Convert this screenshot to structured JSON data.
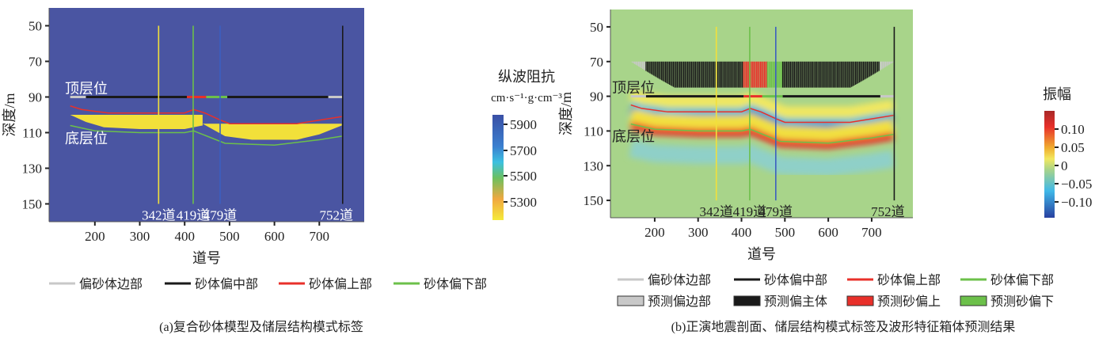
{
  "colors": {
    "yellow": "#f2e03a",
    "green": "#6cc04a",
    "blue": "#3b5fc0",
    "black": "#1a1a1a",
    "grey": "#c8c8c8",
    "red": "#e8302a",
    "bg_left": "#4a55a2",
    "bg_right": "#a8d48a"
  },
  "legend_a": [
    "偏砂体边部",
    "砂体偏中部",
    "砂体偏上部",
    "砂体偏下部"
  ],
  "legend_b_lines": [
    "偏砂体边部",
    "砂体偏中部",
    "砂体偏上部",
    "砂体偏下部"
  ],
  "legend_b_boxes": [
    "预测偏边部",
    "预测偏主体",
    "预测砂偏上",
    "预测砂偏下"
  ],
  "caption_a": "(a)复合砂体模型及储层结构模式标签",
  "caption_b": "(b)正演地震剖面、储层结构模式标签及波形特征箱体预测结果",
  "chart_data": [
    {
      "type": "heatmap",
      "title": "复合砂体模型",
      "xlabel": "道号",
      "ylabel": "深度/m",
      "xticks": [
        200,
        300,
        400,
        500,
        600,
        700
      ],
      "yticks": [
        50,
        70,
        90,
        110,
        130,
        150
      ],
      "xlim": [
        98,
        800
      ],
      "ylim": [
        160,
        40
      ],
      "horizon_labels": [
        "顶层位",
        "底层位"
      ],
      "colorbar": {
        "title": "纵波阻抗",
        "unit": "cm·s⁻¹·g·cm⁻³",
        "ticks": [
          "5900",
          "5700",
          "5500",
          "5300"
        ],
        "range": [
          5200,
          5960
        ]
      },
      "traces": [
        {
          "trace": 342,
          "label": "342道",
          "color": "#f2e03a"
        },
        {
          "trace": 419,
          "label": "419道",
          "color": "#6cc04a"
        },
        {
          "trace": 479,
          "label": "479道",
          "color": "#3b5fc0"
        },
        {
          "trace": 752,
          "label": "752道",
          "color": "#1a1a1a"
        }
      ],
      "label_depth": 90,
      "label_segments": [
        [
          145,
          180,
          "edge"
        ],
        [
          180,
          405,
          "middle"
        ],
        [
          405,
          448,
          "upper"
        ],
        [
          448,
          495,
          "lower"
        ],
        [
          495,
          720,
          "middle"
        ],
        [
          720,
          752,
          "edge"
        ]
      ],
      "top_horizon": [
        [
          145,
          95
        ],
        [
          170,
          97
        ],
        [
          230,
          99
        ],
        [
          400,
          99
        ],
        [
          420,
          97
        ],
        [
          445,
          99
        ],
        [
          480,
          103
        ],
        [
          500,
          105
        ],
        [
          650,
          105
        ],
        [
          700,
          103
        ],
        [
          750,
          101
        ]
      ],
      "bottom_horizon": [
        [
          145,
          106
        ],
        [
          200,
          109
        ],
        [
          300,
          110
        ],
        [
          400,
          110
        ],
        [
          420,
          109
        ],
        [
          450,
          112
        ],
        [
          490,
          116
        ],
        [
          600,
          117
        ],
        [
          700,
          114
        ],
        [
          750,
          112
        ]
      ],
      "sand_bodies": [
        {
          "impedance": 5250,
          "top": [
            [
              145,
              100
            ],
            [
              440,
              100
            ]
          ],
          "bottom": [
            [
              145,
              100
            ],
            [
              180,
              104
            ],
            [
              220,
              107
            ],
            [
              300,
              108
            ],
            [
              400,
              108
            ],
            [
              440,
              106
            ]
          ]
        },
        {
          "impedance": 5250,
          "top": [
            [
              440,
              105
            ],
            [
              750,
              105
            ]
          ],
          "bottom": [
            [
              440,
              105
            ],
            [
              490,
              112
            ],
            [
              550,
              114
            ],
            [
              650,
              114
            ],
            [
              700,
              111
            ],
            [
              750,
              106
            ]
          ]
        }
      ]
    },
    {
      "type": "heatmap",
      "title": "正演地震剖面",
      "xlabel": "道号",
      "ylabel": "深度/m",
      "xticks": [
        200,
        300,
        400,
        500,
        600,
        700
      ],
      "yticks": [
        50,
        70,
        90,
        110,
        130,
        150
      ],
      "xlim": [
        98,
        795
      ],
      "ylim": [
        160,
        40
      ],
      "horizon_labels": [
        "顶层位",
        "底层位"
      ],
      "colorbar": {
        "title": "振幅",
        "ticks": [
          "0.10",
          "0.05",
          "0",
          "−0.05",
          "−0.10"
        ],
        "range": [
          -0.14,
          0.15
        ]
      },
      "traces": [
        {
          "trace": 342,
          "label": "342道",
          "color": "#f2e03a"
        },
        {
          "trace": 419,
          "label": "419道",
          "color": "#6cc04a"
        },
        {
          "trace": 479,
          "label": "479道",
          "color": "#3b5fc0"
        },
        {
          "trace": 752,
          "label": "752道",
          "color": "#1a1a1a"
        }
      ],
      "box_prediction": {
        "top_depth": 70,
        "segments": [
          [
            145,
            180,
            "edge"
          ],
          [
            180,
            405,
            "middle"
          ],
          [
            405,
            460,
            "upper"
          ],
          [
            460,
            495,
            "lower"
          ],
          [
            495,
            720,
            "middle"
          ],
          [
            720,
            752,
            "edge"
          ]
        ]
      }
    }
  ]
}
